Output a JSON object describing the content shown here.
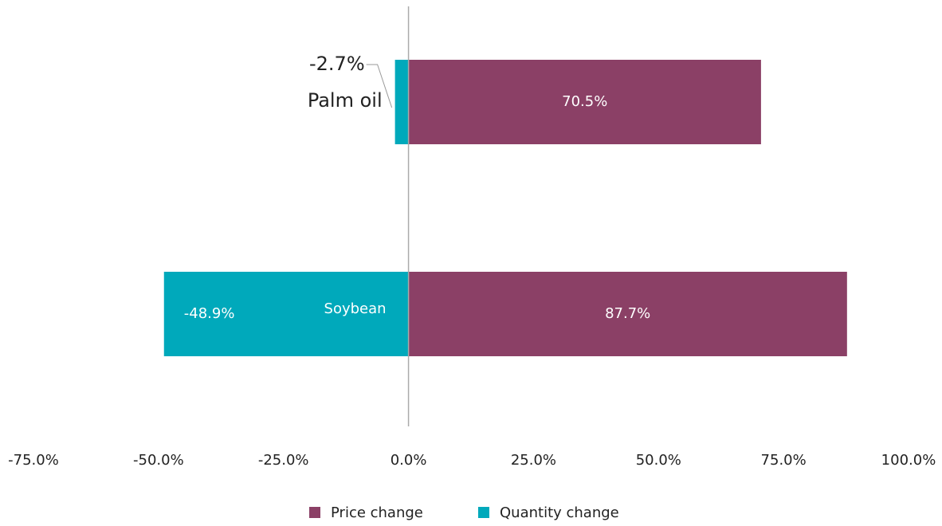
{
  "chart_data": {
    "type": "bar",
    "orientation": "horizontal",
    "categories": [
      "Palm oil",
      "Soybean"
    ],
    "series": [
      {
        "name": "Price change",
        "color": "#8b4066",
        "values": [
          70.5,
          87.7
        ],
        "value_labels": [
          "70.5%",
          "87.7%"
        ]
      },
      {
        "name": "Quantity change",
        "color": "#00a9bb",
        "values": [
          -2.7,
          -48.9
        ],
        "value_labels": [
          "-2.7%",
          "-48.9%"
        ]
      }
    ],
    "xlim": [
      -75,
      100
    ],
    "xticks": [
      {
        "value": -75,
        "label": "-75.0%"
      },
      {
        "value": -50,
        "label": "-50.0%"
      },
      {
        "value": -25,
        "label": "-25.0%"
      },
      {
        "value": 0,
        "label": "0.0%"
      },
      {
        "value": 25,
        "label": "25.0%"
      },
      {
        "value": 50,
        "label": "50.0%"
      },
      {
        "value": 75,
        "label": "75.0%"
      },
      {
        "value": 100,
        "label": "100.0%"
      }
    ],
    "legend": "bottom"
  }
}
